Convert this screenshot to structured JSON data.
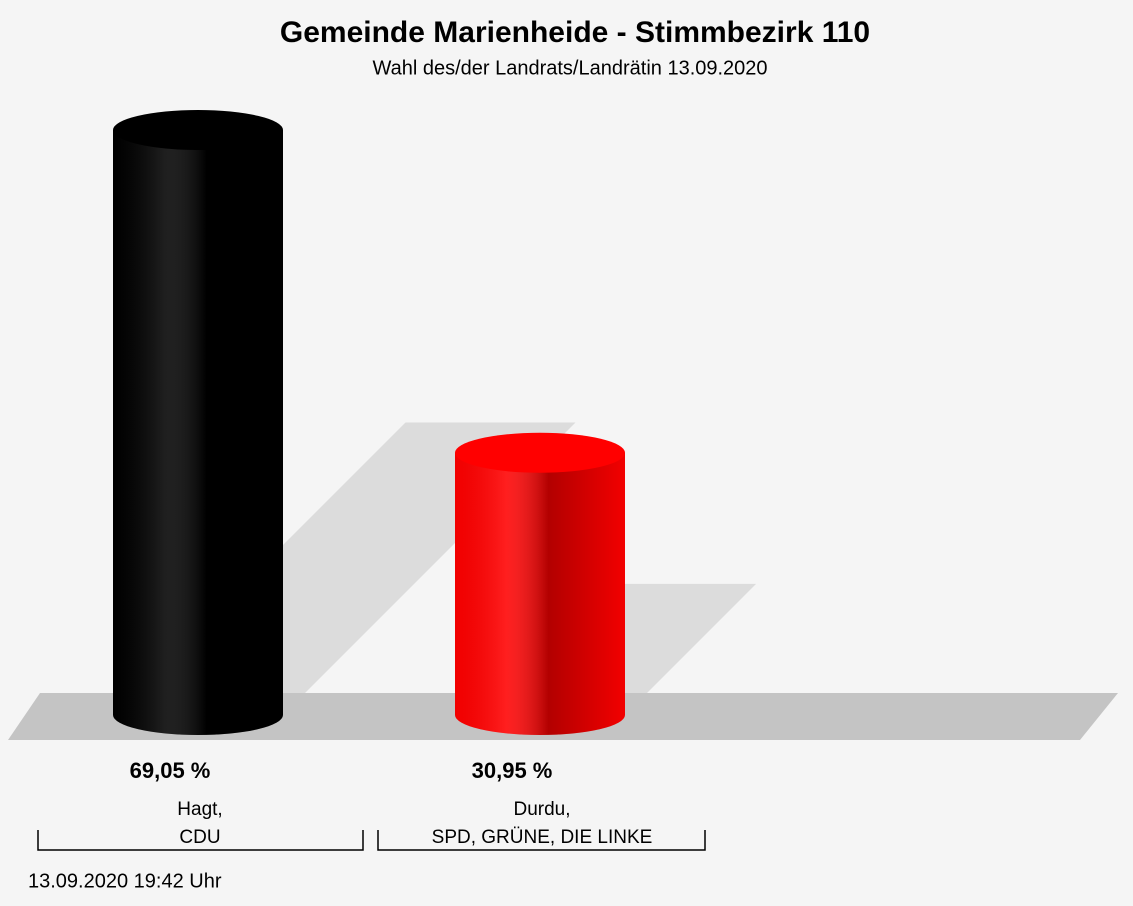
{
  "chart_data": {
    "type": "cylinder-bar",
    "title": "Gemeinde Marienheide - Stimmbezirk 110",
    "subtitle": "Wahl des/der Landrats/Landrätin 13.09.2020",
    "categories": [
      [
        "Hagt,",
        "CDU"
      ],
      [
        "Durdu,",
        "SPD, GRÜNE, DIE LINKE"
      ]
    ],
    "values": [
      69.05,
      30.95
    ],
    "value_labels": [
      "69,05 %",
      "30,95 %"
    ],
    "colors": [
      "#000000",
      "#ff0000"
    ],
    "footer": "13.09.2020 19:42 Uhr"
  }
}
